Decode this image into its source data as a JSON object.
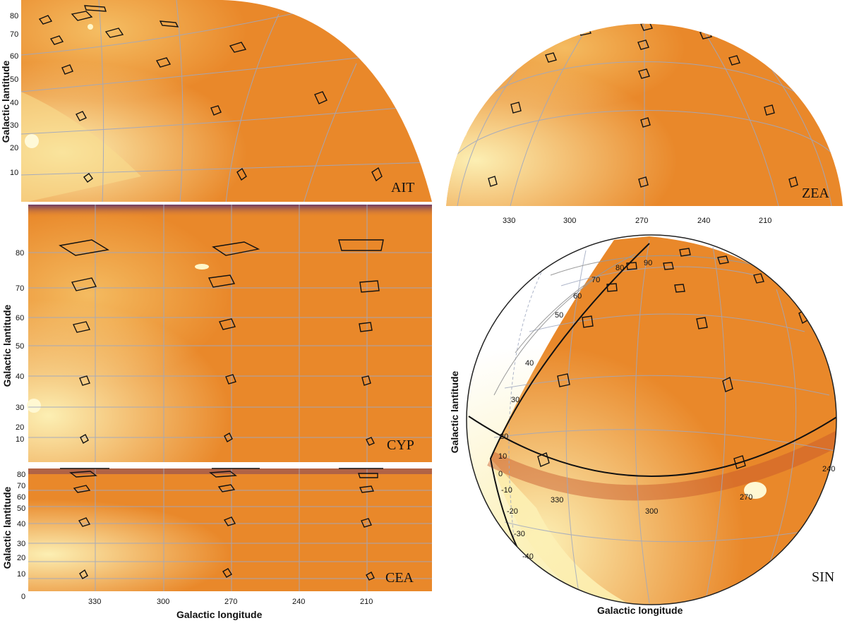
{
  "colors": {
    "map_base": "#e9882a",
    "map_light": "#fbe9a2",
    "map_dark": "#c6542a",
    "grid": "#9fa8c0",
    "footprint": "#111111"
  },
  "panels": {
    "ait": {
      "projection_label": "AIT",
      "ylabel": "Galactic lantitude",
      "lat_ticks": [
        "80",
        "70",
        "60",
        "50",
        "40",
        "30",
        "20",
        "10"
      ]
    },
    "zea": {
      "projection_label": "ZEA",
      "lon_ticks": [
        "330",
        "300",
        "270",
        "240",
        "210"
      ]
    },
    "cyp": {
      "projection_label": "CYP",
      "ylabel": "Galactic lantitude",
      "lat_ticks": [
        "80",
        "70",
        "60",
        "50",
        "40",
        "30",
        "20",
        "10"
      ]
    },
    "cea": {
      "projection_label": "CEA",
      "ylabel": "Galactic lantitude",
      "xlabel": "Galactic longitude",
      "lat_ticks": [
        "80",
        "70",
        "60",
        "50",
        "40",
        "30",
        "20",
        "10",
        "0"
      ],
      "lon_ticks": [
        "330",
        "300",
        "270",
        "240",
        "210"
      ]
    },
    "sin": {
      "projection_label": "SIN",
      "ylabel": "Galactic lantitude",
      "xlabel": "Galactic longitude",
      "lat_ticks": [
        "90",
        "80",
        "70",
        "60",
        "50",
        "40",
        "30",
        "20",
        "10",
        "0",
        "-10",
        "-20",
        "-30",
        "-40"
      ],
      "lon_ticks": [
        "330",
        "300",
        "270",
        "240"
      ]
    }
  }
}
